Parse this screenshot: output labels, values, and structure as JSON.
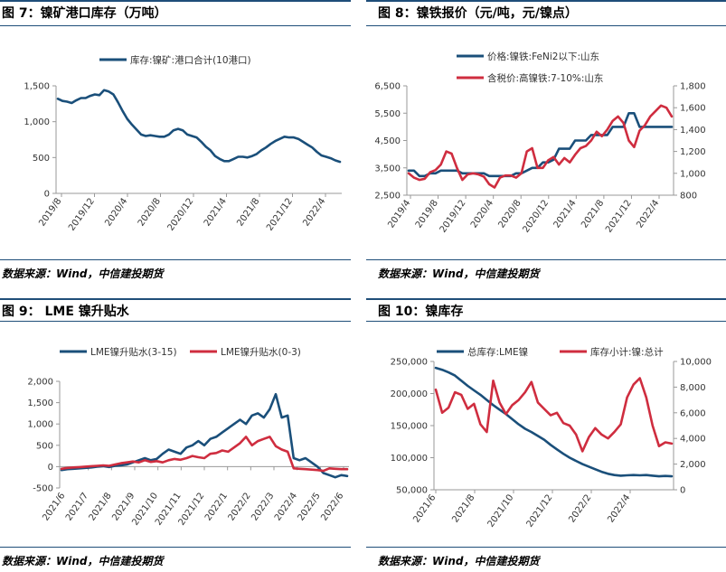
{
  "colors": {
    "navy": "#1a4f7a",
    "red": "#cf2d3f",
    "rule": "#1f4e79"
  },
  "source_text": "数据来源：Wind，中信建投期货",
  "chart_data": [
    {
      "id": "fig7",
      "title": "图 7：镍矿港口库存（万吨）",
      "type": "line",
      "x_labels": [
        "2019/8",
        "2019/12",
        "2020/4",
        "2020/8",
        "2020/12",
        "2021/4",
        "2021/8",
        "2021/12",
        "2022/4"
      ],
      "ylim": [
        0,
        1500
      ],
      "y_ticks": [
        "0",
        "500",
        "1,000",
        "1,500"
      ],
      "grid": false,
      "legend": "top",
      "series": [
        {
          "name": "库存:镍矿:港口合计(10港口)",
          "color": "#1a4f7a",
          "axis": "left",
          "values": [
            1320,
            1290,
            1280,
            1260,
            1300,
            1330,
            1330,
            1360,
            1380,
            1370,
            1440,
            1420,
            1380,
            1270,
            1150,
            1040,
            960,
            890,
            820,
            800,
            810,
            800,
            790,
            790,
            820,
            880,
            900,
            880,
            820,
            800,
            780,
            720,
            650,
            600,
            520,
            480,
            450,
            450,
            480,
            510,
            510,
            500,
            520,
            550,
            600,
            640,
            690,
            730,
            760,
            790,
            780,
            780,
            760,
            720,
            680,
            640,
            580,
            530,
            510,
            490,
            460,
            440
          ]
        }
      ]
    },
    {
      "id": "fig8",
      "title": "图 8：镍铁报价（元/吨，元/镍点）",
      "type": "line",
      "x_labels": [
        "2019/4",
        "2019/8",
        "2019/12",
        "2020/4",
        "2020/8",
        "2020/12",
        "2021/4",
        "2021/8",
        "2021/12",
        "2022/4"
      ],
      "ylim_left": [
        2500,
        6500
      ],
      "y_ticks_left": [
        "2,500",
        "3,500",
        "4,500",
        "5,500",
        "6,500"
      ],
      "ylim_right": [
        800,
        1800
      ],
      "y_ticks_right": [
        "800",
        "1,000",
        "1,200",
        "1,400",
        "1,600",
        "1,800"
      ],
      "legend": "top",
      "series": [
        {
          "name": "价格:镍铁:FeNi2以下:山东",
          "color": "#1a4f7a",
          "axis": "left",
          "values": [
            3400,
            3400,
            3200,
            3200,
            3300,
            3300,
            3400,
            3400,
            3400,
            3400,
            3300,
            3300,
            3300,
            3300,
            3300,
            3200,
            3200,
            3200,
            3200,
            3200,
            3300,
            3300,
            3400,
            3500,
            3500,
            3700,
            3700,
            3800,
            4200,
            4200,
            4200,
            4500,
            4500,
            4500,
            4700,
            4700,
            4700,
            4700,
            5000,
            5000,
            5000,
            5500,
            5500,
            5000,
            5000,
            5000,
            5000,
            5000,
            5000,
            5000
          ]
        },
        {
          "name": "含税价:高镍铁:7-10%:山东",
          "color": "#cf2d3f",
          "axis": "right",
          "values": [
            1000,
            960,
            940,
            950,
            1010,
            1030,
            1080,
            1200,
            1180,
            1050,
            940,
            990,
            1000,
            990,
            970,
            900,
            870,
            960,
            980,
            980,
            960,
            1000,
            1200,
            1230,
            1050,
            1050,
            1120,
            1150,
            1080,
            1140,
            1100,
            1170,
            1230,
            1250,
            1300,
            1380,
            1340,
            1400,
            1480,
            1520,
            1460,
            1300,
            1240,
            1390,
            1440,
            1520,
            1570,
            1620,
            1600,
            1520
          ]
        }
      ]
    },
    {
      "id": "fig9",
      "title": "图 9：  LME 镍升贴水",
      "type": "line",
      "x_labels": [
        "2021/6",
        "2021/7",
        "2021/8",
        "2021/9",
        "2021/10",
        "2021/11",
        "2021/12",
        "2022/1",
        "2022/2",
        "2022/3",
        "2022/4",
        "2022/5",
        "2022/6"
      ],
      "ylim": [
        -500,
        2000
      ],
      "y_ticks": [
        "-500",
        "0",
        "500",
        "1,000",
        "1,500",
        "2,000"
      ],
      "legend": "top",
      "series": [
        {
          "name": "LME镍升贴水(3-15)",
          "color": "#1a4f7a",
          "axis": "left",
          "values": [
            -80,
            -60,
            -50,
            -40,
            -30,
            -20,
            0,
            10,
            -10,
            20,
            30,
            50,
            100,
            150,
            200,
            150,
            180,
            300,
            400,
            350,
            300,
            450,
            500,
            600,
            500,
            650,
            700,
            800,
            900,
            1000,
            1100,
            1000,
            1200,
            1250,
            1150,
            1350,
            1700,
            1150,
            1200,
            200,
            150,
            200,
            100,
            0,
            -150,
            -200,
            -250,
            -200,
            -220
          ]
        },
        {
          "name": "LME镍升贴水(0-3)",
          "color": "#cf2d3f",
          "axis": "left",
          "values": [
            -50,
            -30,
            -20,
            -10,
            0,
            10,
            20,
            30,
            20,
            50,
            80,
            100,
            120,
            100,
            150,
            110,
            130,
            100,
            150,
            180,
            160,
            200,
            250,
            220,
            200,
            300,
            320,
            380,
            350,
            450,
            550,
            700,
            500,
            600,
            650,
            700,
            480,
            400,
            350,
            -40,
            -50,
            -60,
            -70,
            -80,
            -100,
            -40,
            -50,
            -60,
            -60
          ]
        }
      ]
    },
    {
      "id": "fig10",
      "title": "图 10：镍库存",
      "type": "line",
      "x_labels": [
        "2021/6",
        "2021/8",
        "2021/10",
        "2021/12",
        "2022/2",
        "2022/4"
      ],
      "ylim_left": [
        50000,
        250000
      ],
      "y_ticks_left": [
        "50,000",
        "100,000",
        "150,000",
        "200,000",
        "250,000"
      ],
      "ylim_right": [
        0,
        10000
      ],
      "y_ticks_right": [
        "0",
        "2,000",
        "4,000",
        "6,000",
        "8,000",
        "10,000"
      ],
      "legend": "top",
      "series": [
        {
          "name": "总库存:LME镍",
          "color": "#1a4f7a",
          "axis": "left",
          "values": [
            240000,
            237000,
            233000,
            228000,
            220000,
            212000,
            205000,
            198000,
            190000,
            182000,
            175000,
            168000,
            160000,
            152000,
            145000,
            140000,
            134000,
            128000,
            120000,
            113000,
            106000,
            100000,
            95000,
            90000,
            86000,
            82000,
            78000,
            75000,
            73000,
            72000,
            72500,
            73000,
            72500,
            73000,
            72000,
            71000,
            71500,
            71000
          ]
        },
        {
          "name": "库存小计:镍:总计",
          "color": "#cf2d3f",
          "axis": "right",
          "values": [
            7800,
            6000,
            6400,
            7600,
            7400,
            6300,
            6700,
            5100,
            4500,
            8500,
            6800,
            5900,
            6600,
            7000,
            7600,
            8400,
            6800,
            6300,
            5800,
            6000,
            5200,
            5000,
            4300,
            3000,
            4100,
            4800,
            4300,
            4000,
            4500,
            5100,
            7200,
            8200,
            8700,
            7200,
            5000,
            3400,
            3700,
            3600
          ]
        }
      ]
    }
  ]
}
